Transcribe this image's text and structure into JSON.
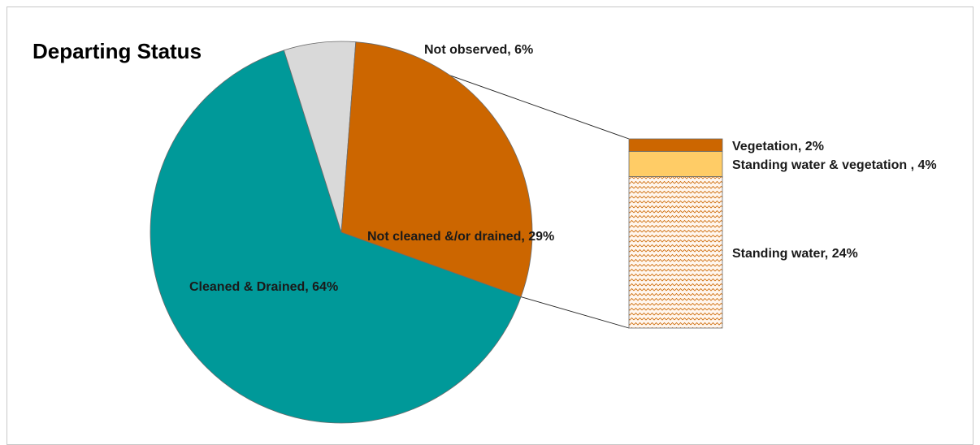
{
  "chart_data": {
    "type": "pie",
    "subtype": "bar-of-pie",
    "title": "Departing Status",
    "slices": [
      {
        "label": "Cleaned & Drained, 64%",
        "value": 64,
        "color": "#009999"
      },
      {
        "label": "Not observed, 6%",
        "value": 6,
        "color": "#d9d9d9"
      },
      {
        "label": "Not cleaned  &/or drained, 29%",
        "value": 29,
        "color": "#cc6600"
      }
    ],
    "breakdown_of": "Not cleaned  &/or drained, 29%",
    "breakdown": [
      {
        "label": "Vegetation, 2%",
        "value": 2,
        "color": "#cc6600",
        "pattern": "solid"
      },
      {
        "label": "Standing water & vegetation , 4%",
        "value": 4,
        "color": "#ffcc66",
        "pattern": "solid"
      },
      {
        "label": "Standing water, 24%",
        "value": 24,
        "color": "#cc6600",
        "pattern": "zigzag"
      }
    ]
  }
}
